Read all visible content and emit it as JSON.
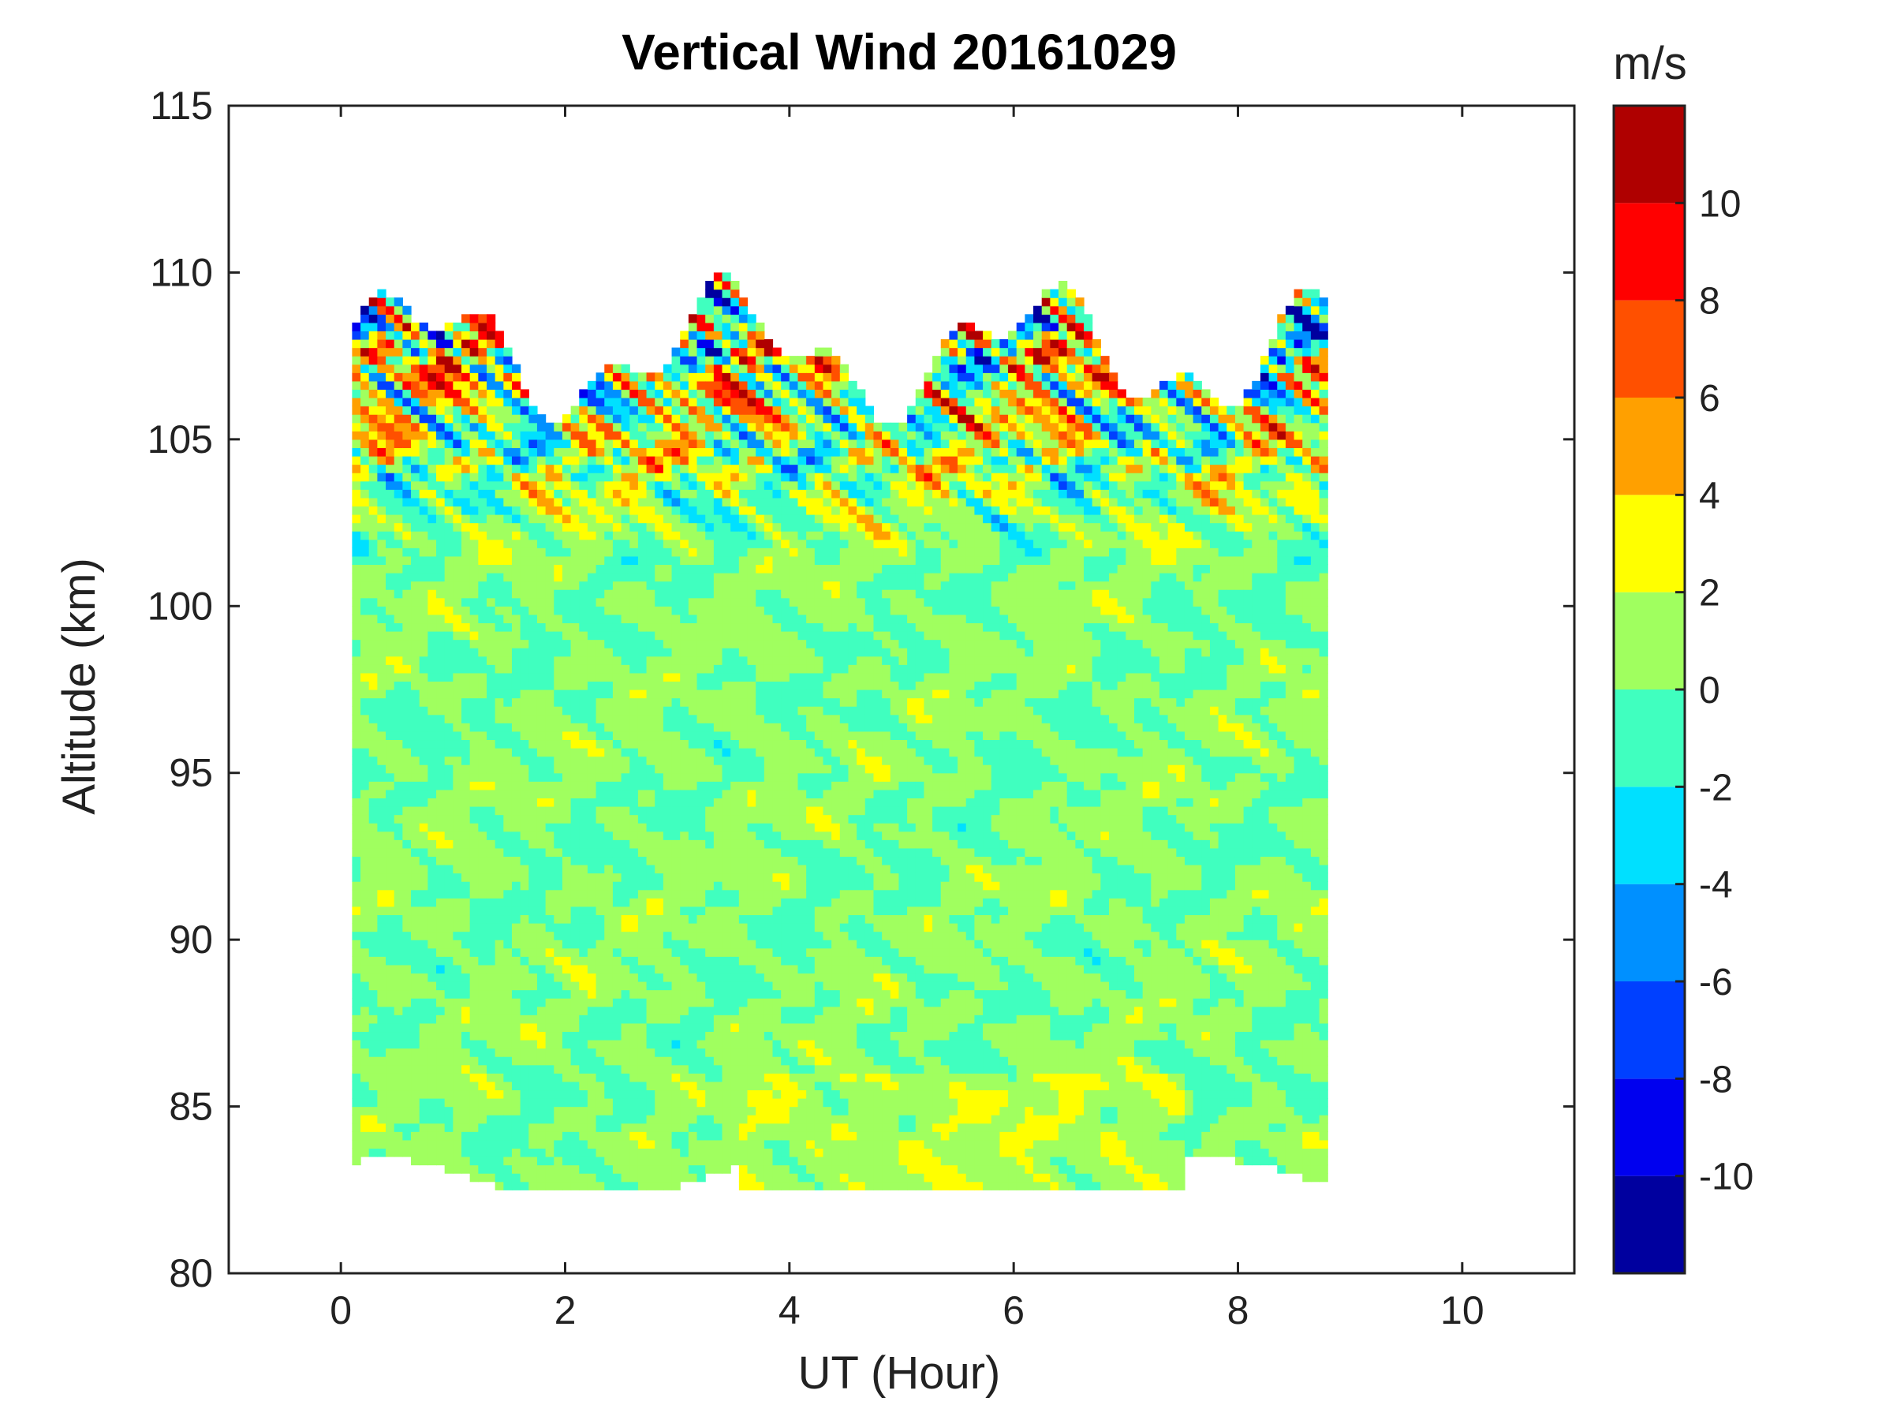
{
  "chart_data": {
    "type": "heatmap",
    "title": "Vertical Wind 20161029",
    "xlabel": "UT (Hour)",
    "ylabel": "Altitude (km)",
    "xlim": [
      -1,
      11
    ],
    "ylim": [
      80,
      115
    ],
    "x_ticks": [
      0,
      2,
      4,
      6,
      8,
      10
    ],
    "y_ticks": [
      80,
      85,
      90,
      95,
      100,
      105,
      110,
      115
    ],
    "data_extent": {
      "x_min": 0.1,
      "x_max": 8.8,
      "y_min": 82.5,
      "y_max": 110
    },
    "grid": false,
    "colorbar": {
      "label": "m/s",
      "range": [
        -12,
        12
      ],
      "levels": [
        -12,
        -10,
        -8,
        -6,
        -4,
        -2,
        0,
        2,
        4,
        6,
        8,
        10,
        12
      ],
      "colors": [
        "#00009f",
        "#0000ef",
        "#0040ff",
        "#0090ff",
        "#00e0ff",
        "#40ffbf",
        "#a0ff5f",
        "#ffff00",
        "#ffa000",
        "#ff5000",
        "#ff0000",
        "#af0000"
      ],
      "tick_labels": [
        "-10",
        "-8",
        "-6",
        "-4",
        "-2",
        "0",
        "2",
        "4",
        "6",
        "8",
        "10"
      ],
      "tick_values": [
        -10,
        -8,
        -6,
        -4,
        -2,
        0,
        2,
        4,
        6,
        8,
        10
      ]
    }
  }
}
